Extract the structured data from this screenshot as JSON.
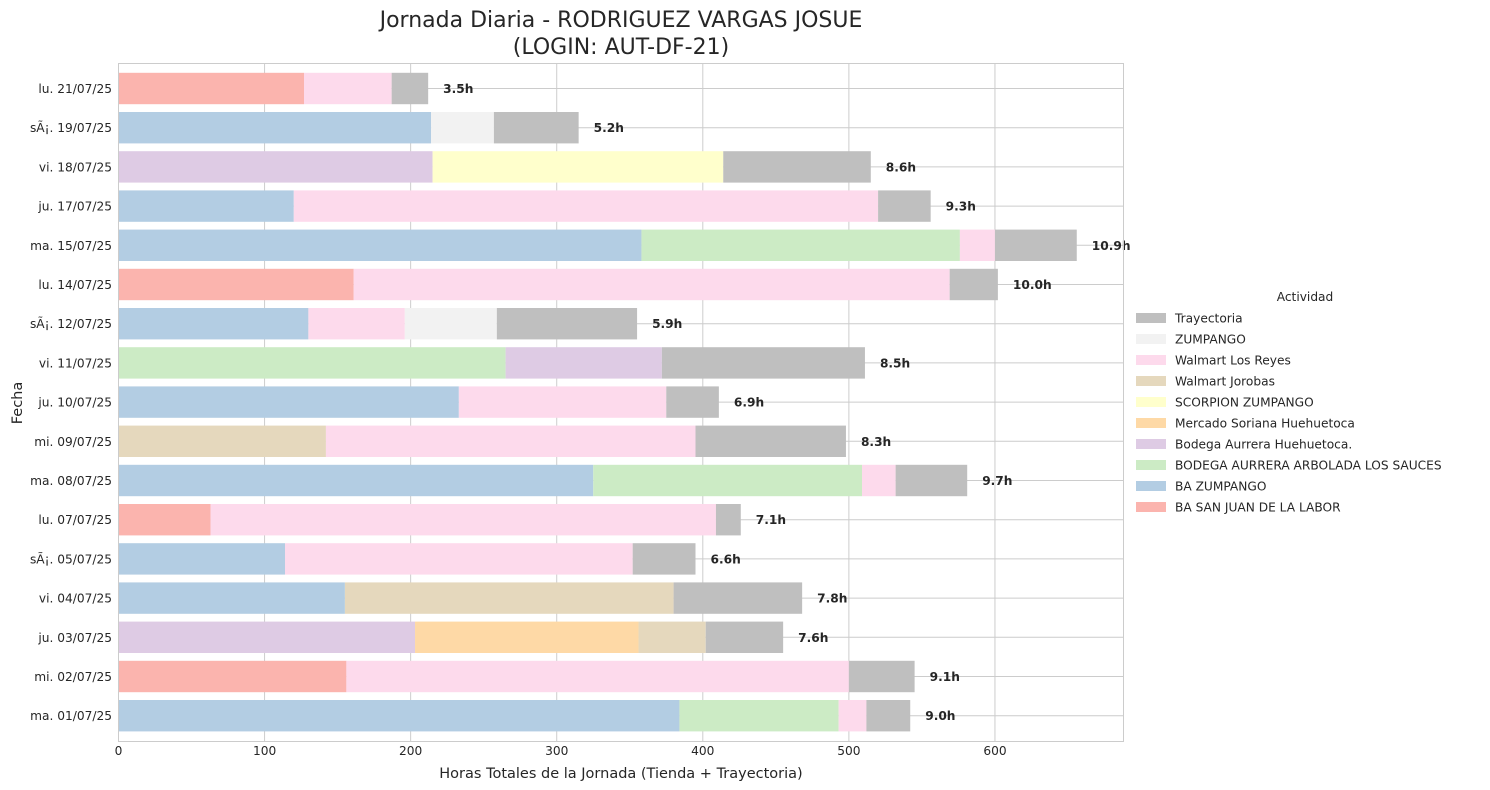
{
  "chart_data": {
    "type": "bar",
    "orientation": "horizontal",
    "stacked": true,
    "title_line1": "Jornada Diaria - RODRIGUEZ VARGAS JOSUE",
    "title_line2": "(LOGIN: AUT-DF-21)",
    "xlabel": "Horas Totales de la Jornada (Tienda + Trayectoria)",
    "ylabel": "Fecha",
    "xlim": [
      0,
      688
    ],
    "xticks": [
      0,
      100,
      200,
      300,
      400,
      500,
      600
    ],
    "grid": true,
    "legend": {
      "title": "Actividad",
      "placement": "right",
      "entries": [
        {
          "name": "Trayectoria",
          "color": "#bfbfbf"
        },
        {
          "name": "ZUMPANGO",
          "color": "#f2f2f2"
        },
        {
          "name": "Walmart Los Reyes",
          "color": "#fddaec"
        },
        {
          "name": "Walmart Jorobas",
          "color": "#e5d8bd"
        },
        {
          "name": "SCORPION ZUMPANGO",
          "color": "#ffffcc"
        },
        {
          "name": "Mercado Soriana Huehuetoca",
          "color": "#fed9a6"
        },
        {
          "name": "Bodega Aurrera Huehuetoca.",
          "color": "#decbe4"
        },
        {
          "name": "BODEGA AURRERA ARBOLADA LOS SAUCES",
          "color": "#ccebc5"
        },
        {
          "name": "BA ZUMPANGO",
          "color": "#b3cde3"
        },
        {
          "name": "BA SAN JUAN DE LA LABOR",
          "color": "#fbb4ae"
        }
      ]
    },
    "rows": [
      {
        "date": "lu. 21/07/25",
        "total_label": "3.5h",
        "segments": [
          {
            "series": "BA SAN JUAN DE LA LABOR",
            "value": 127
          },
          {
            "series": "Walmart Los Reyes",
            "value": 60
          },
          {
            "series": "Trayectoria",
            "value": 25
          }
        ]
      },
      {
        "date": "sÃ¡. 19/07/25",
        "total_label": "5.2h",
        "segments": [
          {
            "series": "BA ZUMPANGO",
            "value": 214
          },
          {
            "series": "ZUMPANGO",
            "value": 43
          },
          {
            "series": "Trayectoria",
            "value": 58
          }
        ]
      },
      {
        "date": "vi. 18/07/25",
        "total_label": "8.6h",
        "segments": [
          {
            "series": "Bodega Aurrera Huehuetoca.",
            "value": 215
          },
          {
            "series": "SCORPION ZUMPANGO",
            "value": 199
          },
          {
            "series": "Trayectoria",
            "value": 101
          }
        ]
      },
      {
        "date": "ju. 17/07/25",
        "total_label": "9.3h",
        "segments": [
          {
            "series": "BA ZUMPANGO",
            "value": 120
          },
          {
            "series": "Walmart Los Reyes",
            "value": 400
          },
          {
            "series": "Trayectoria",
            "value": 36
          }
        ]
      },
      {
        "date": "ma. 15/07/25",
        "total_label": "10.9h",
        "segments": [
          {
            "series": "BA ZUMPANGO",
            "value": 358
          },
          {
            "series": "BODEGA AURRERA ARBOLADA LOS SAUCES",
            "value": 218
          },
          {
            "series": "Walmart Los Reyes",
            "value": 24
          },
          {
            "series": "Trayectoria",
            "value": 56
          }
        ]
      },
      {
        "date": "lu. 14/07/25",
        "total_label": "10.0h",
        "segments": [
          {
            "series": "BA SAN JUAN DE LA LABOR",
            "value": 161
          },
          {
            "series": "Walmart Los Reyes",
            "value": 408
          },
          {
            "series": "Trayectoria",
            "value": 33
          }
        ]
      },
      {
        "date": "sÃ¡. 12/07/25",
        "total_label": "5.9h",
        "segments": [
          {
            "series": "BA ZUMPANGO",
            "value": 130
          },
          {
            "series": "Walmart Los Reyes",
            "value": 66
          },
          {
            "series": "ZUMPANGO",
            "value": 63
          },
          {
            "series": "Trayectoria",
            "value": 96
          }
        ]
      },
      {
        "date": "vi. 11/07/25",
        "total_label": "8.5h",
        "segments": [
          {
            "series": "BODEGA AURRERA ARBOLADA LOS SAUCES",
            "value": 265
          },
          {
            "series": "Bodega Aurrera Huehuetoca.",
            "value": 107
          },
          {
            "series": "Trayectoria",
            "value": 139
          }
        ]
      },
      {
        "date": "ju. 10/07/25",
        "total_label": "6.9h",
        "segments": [
          {
            "series": "BA ZUMPANGO",
            "value": 233
          },
          {
            "series": "Walmart Los Reyes",
            "value": 142
          },
          {
            "series": "Trayectoria",
            "value": 36
          }
        ]
      },
      {
        "date": "mi. 09/07/25",
        "total_label": "8.3h",
        "segments": [
          {
            "series": "Walmart Jorobas",
            "value": 142
          },
          {
            "series": "Walmart Los Reyes",
            "value": 253
          },
          {
            "series": "Trayectoria",
            "value": 103
          }
        ]
      },
      {
        "date": "ma. 08/07/25",
        "total_label": "9.7h",
        "segments": [
          {
            "series": "BA ZUMPANGO",
            "value": 325
          },
          {
            "series": "BODEGA AURRERA ARBOLADA LOS SAUCES",
            "value": 184
          },
          {
            "series": "Walmart Los Reyes",
            "value": 23
          },
          {
            "series": "Trayectoria",
            "value": 49
          }
        ]
      },
      {
        "date": "lu. 07/07/25",
        "total_label": "7.1h",
        "segments": [
          {
            "series": "BA SAN JUAN DE LA LABOR",
            "value": 63
          },
          {
            "series": "Walmart Los Reyes",
            "value": 346
          },
          {
            "series": "Trayectoria",
            "value": 17
          }
        ]
      },
      {
        "date": "sÃ¡. 05/07/25",
        "total_label": "6.6h",
        "segments": [
          {
            "series": "BA ZUMPANGO",
            "value": 114
          },
          {
            "series": "Walmart Los Reyes",
            "value": 238
          },
          {
            "series": "Trayectoria",
            "value": 43
          }
        ]
      },
      {
        "date": "vi. 04/07/25",
        "total_label": "7.8h",
        "segments": [
          {
            "series": "BA ZUMPANGO",
            "value": 155
          },
          {
            "series": "Walmart Jorobas",
            "value": 225
          },
          {
            "series": "Trayectoria",
            "value": 88
          }
        ]
      },
      {
        "date": "ju. 03/07/25",
        "total_label": "7.6h",
        "segments": [
          {
            "series": "Bodega Aurrera Huehuetoca.",
            "value": 203
          },
          {
            "series": "Mercado Soriana Huehuetoca",
            "value": 153
          },
          {
            "series": "Walmart Jorobas",
            "value": 46
          },
          {
            "series": "Trayectoria",
            "value": 53
          }
        ]
      },
      {
        "date": "mi. 02/07/25",
        "total_label": "9.1h",
        "segments": [
          {
            "series": "BA SAN JUAN DE LA LABOR",
            "value": 156
          },
          {
            "series": "Walmart Los Reyes",
            "value": 344
          },
          {
            "series": "Trayectoria",
            "value": 45
          }
        ]
      },
      {
        "date": "ma. 01/07/25",
        "total_label": "9.0h",
        "segments": [
          {
            "series": "BA ZUMPANGO",
            "value": 384
          },
          {
            "series": "BODEGA AURRERA ARBOLADA LOS SAUCES",
            "value": 109
          },
          {
            "series": "Walmart Los Reyes",
            "value": 19
          },
          {
            "series": "Trayectoria",
            "value": 30
          }
        ]
      }
    ]
  }
}
